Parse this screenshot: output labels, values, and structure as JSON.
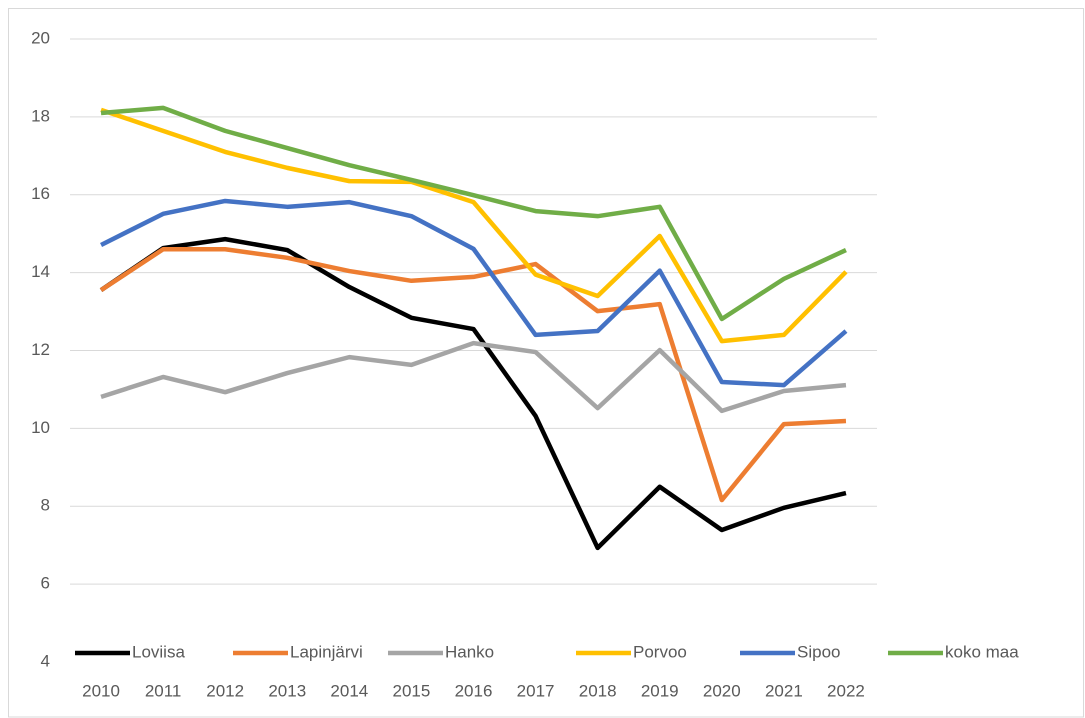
{
  "chart_data": {
    "type": "line",
    "categories": [
      "2010",
      "2011",
      "2012",
      "2013",
      "2014",
      "2015",
      "2016",
      "2017",
      "2018",
      "2019",
      "2020",
      "2021",
      "2022"
    ],
    "series": [
      {
        "name": "Loviisa",
        "color": "#000000",
        "values": [
          13.55,
          14.63,
          14.86,
          14.58,
          13.63,
          12.84,
          12.55,
          10.32,
          6.93,
          8.5,
          7.39,
          7.96,
          8.34
        ]
      },
      {
        "name": "Lapinjärvi",
        "color": "#ed7d31",
        "values": [
          13.55,
          14.6,
          14.6,
          14.38,
          14.04,
          13.79,
          13.89,
          14.22,
          13.01,
          13.19,
          8.16,
          10.11,
          10.19
        ]
      },
      {
        "name": "Hanko",
        "color": "#a5a5a5",
        "values": [
          10.81,
          11.32,
          10.93,
          11.42,
          11.83,
          11.63,
          12.19,
          11.96,
          10.52,
          12.01,
          10.45,
          10.96,
          11.11
        ]
      },
      {
        "name": "Porvoo",
        "color": "#ffc000",
        "values": [
          18.18,
          17.64,
          17.1,
          16.69,
          16.35,
          16.33,
          15.81,
          13.95,
          13.4,
          14.94,
          12.24,
          12.4,
          14.02
        ]
      },
      {
        "name": "Sipoo",
        "color": "#4472c4",
        "values": [
          14.71,
          15.51,
          15.84,
          15.69,
          15.81,
          15.45,
          14.61,
          12.4,
          12.5,
          14.05,
          11.19,
          11.11,
          12.5
        ]
      },
      {
        "name": "koko maa",
        "color": "#70ad47",
        "values": [
          18.1,
          18.23,
          17.64,
          17.2,
          16.76,
          16.38,
          15.99,
          15.58,
          15.45,
          15.69,
          12.81,
          13.84,
          14.58
        ]
      }
    ],
    "ylim": [
      4,
      20
    ],
    "yticks": [
      4,
      6,
      8,
      10,
      12,
      14,
      16,
      18,
      20
    ],
    "grid": true,
    "legend": "bottom"
  }
}
